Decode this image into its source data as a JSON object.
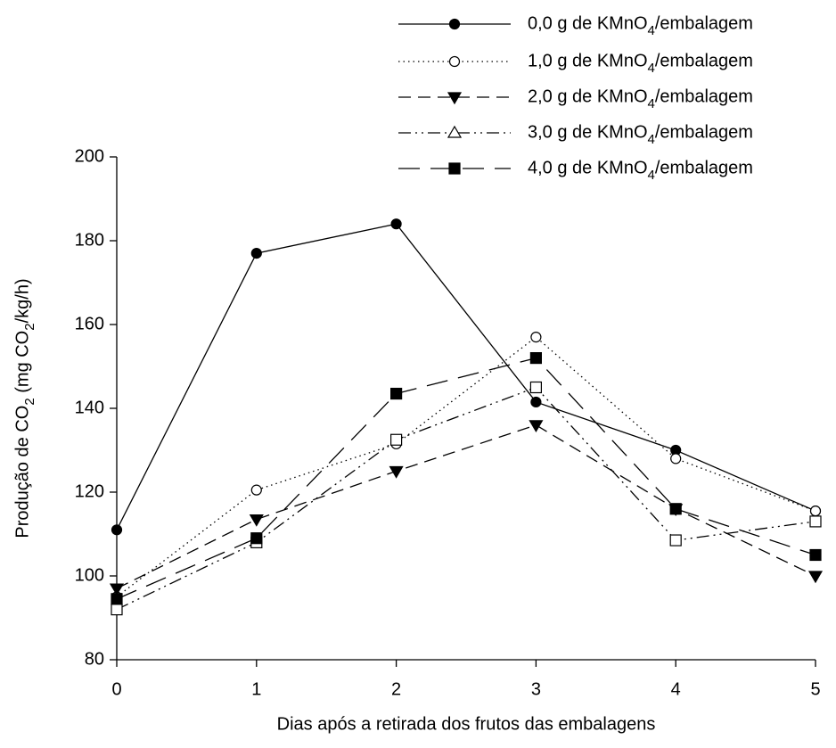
{
  "chart_data": {
    "type": "line",
    "xlabel": "Dias após a retirada dos frutos das embalagens",
    "ylabel": "Produção de CO2 (mg CO2/kg/h)",
    "x": [
      0,
      1,
      2,
      3,
      4,
      5
    ],
    "xlim": [
      0,
      5
    ],
    "xticks": [
      0,
      1,
      2,
      3,
      4,
      5
    ],
    "ylim": [
      80,
      200
    ],
    "yticks": [
      80,
      100,
      120,
      140,
      160,
      180,
      200
    ],
    "grid": false,
    "legend": "top-right",
    "series": [
      {
        "name": "0,0 g de KMnO4/embalagem",
        "color": "#000000",
        "line": "solid",
        "marker": "circle-filled",
        "values": [
          111,
          177,
          184,
          141.5,
          130,
          115.5
        ]
      },
      {
        "name": "1,0 g de KMnO4/embalagem",
        "color": "#000000",
        "line": "dotted",
        "marker": "circle-open",
        "values": [
          95,
          120.5,
          131.5,
          157,
          128,
          115.5
        ]
      },
      {
        "name": "2,0 g de KMnO4/embalagem",
        "color": "#000000",
        "line": "dashed",
        "marker": "triangle-down-filled",
        "values": [
          97,
          113.5,
          125,
          136,
          116,
          100
        ]
      },
      {
        "name": "3,0 g de KMnO4/embalagem",
        "color": "#000000",
        "line": "dashdotdot",
        "marker": "square-open",
        "legend_marker": "triangle-open",
        "values": [
          92,
          108,
          132.5,
          145,
          108.5,
          113
        ]
      },
      {
        "name": "4,0 g de KMnO4/embalagem",
        "color": "#000000",
        "line": "longdash",
        "marker": "square-filled",
        "values": [
          94.5,
          109,
          143.5,
          152,
          116,
          105
        ]
      }
    ]
  }
}
